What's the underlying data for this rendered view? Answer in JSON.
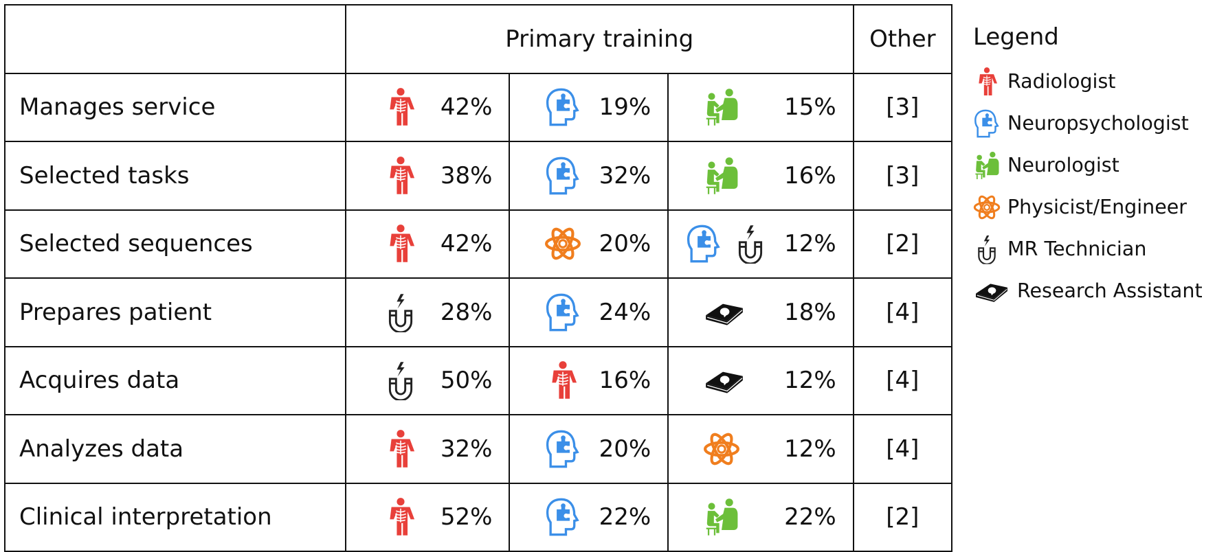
{
  "header": {
    "primary_label": "Primary training",
    "other_label": "Other"
  },
  "rows": [
    {
      "label": "Manages service",
      "cells": [
        {
          "icons": [
            "radiologist"
          ],
          "pct": "42%"
        },
        {
          "icons": [
            "neuropsychologist"
          ],
          "pct": "19%"
        },
        {
          "icons": [
            "neurologist"
          ],
          "pct": "15%"
        }
      ],
      "other": "[3]"
    },
    {
      "label": "Selected tasks",
      "cells": [
        {
          "icons": [
            "radiologist"
          ],
          "pct": "38%"
        },
        {
          "icons": [
            "neuropsychologist"
          ],
          "pct": "32%"
        },
        {
          "icons": [
            "neurologist"
          ],
          "pct": "16%"
        }
      ],
      "other": "[3]"
    },
    {
      "label": "Selected sequences",
      "cells": [
        {
          "icons": [
            "radiologist"
          ],
          "pct": "42%"
        },
        {
          "icons": [
            "physicist"
          ],
          "pct": "20%"
        },
        {
          "icons": [
            "neuropsychologist",
            "mr-technician"
          ],
          "pct": "12%"
        }
      ],
      "other": "[2]"
    },
    {
      "label": "Prepares patient",
      "cells": [
        {
          "icons": [
            "mr-technician"
          ],
          "pct": "28%"
        },
        {
          "icons": [
            "neuropsychologist"
          ],
          "pct": "24%"
        },
        {
          "icons": [
            "research-assistant"
          ],
          "pct": "18%"
        }
      ],
      "other": "[4]"
    },
    {
      "label": "Acquires data",
      "cells": [
        {
          "icons": [
            "mr-technician"
          ],
          "pct": "50%"
        },
        {
          "icons": [
            "radiologist"
          ],
          "pct": "16%"
        },
        {
          "icons": [
            "research-assistant"
          ],
          "pct": "12%"
        }
      ],
      "other": "[4]"
    },
    {
      "label": "Analyzes data",
      "cells": [
        {
          "icons": [
            "radiologist"
          ],
          "pct": "32%"
        },
        {
          "icons": [
            "neuropsychologist"
          ],
          "pct": "20%"
        },
        {
          "icons": [
            "physicist"
          ],
          "pct": "12%"
        }
      ],
      "other": "[4]"
    },
    {
      "label": "Clinical interpretation",
      "cells": [
        {
          "icons": [
            "radiologist"
          ],
          "pct": "52%"
        },
        {
          "icons": [
            "neuropsychologist"
          ],
          "pct": "22%"
        },
        {
          "icons": [
            "neurologist"
          ],
          "pct": "22%"
        }
      ],
      "other": "[2]"
    }
  ],
  "legend": {
    "title": "Legend",
    "items": [
      {
        "icon": "radiologist",
        "label": "Radiologist"
      },
      {
        "icon": "neuropsychologist",
        "label": "Neuropsychologist"
      },
      {
        "icon": "neurologist",
        "label": "Neurologist"
      },
      {
        "icon": "physicist",
        "label": "Physicist/Engineer"
      },
      {
        "icon": "mr-technician",
        "label": "MR Technician"
      },
      {
        "icon": "research-assistant",
        "label": "Research Assistant"
      }
    ]
  },
  "colors": {
    "radiologist": "#e8403a",
    "neuropsychologist": "#3b8fe8",
    "neurologist": "#6cbf3a",
    "physicist": "#f07e1e",
    "mr-technician": "#222222",
    "research-assistant": "#111111"
  }
}
